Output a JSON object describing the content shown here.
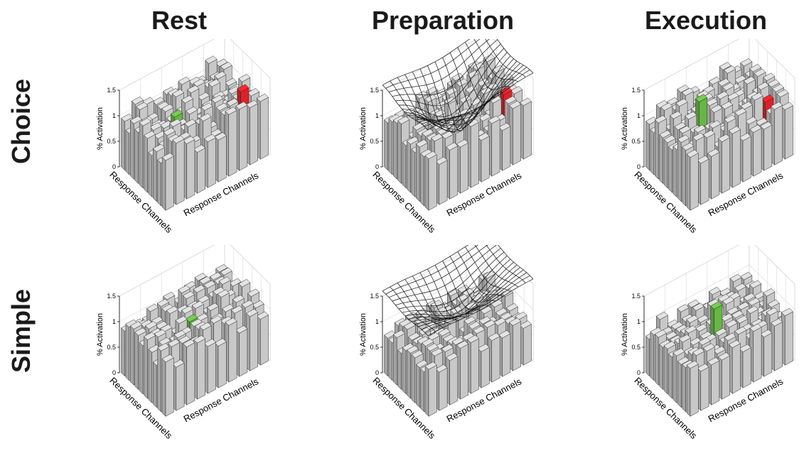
{
  "columns": [
    "Rest",
    "Preparation",
    "Execution"
  ],
  "rows": [
    "Choice",
    "Simple"
  ],
  "colors": {
    "bar": "#d2d2d2",
    "edge": "#2a2a2a",
    "target": "#e8242a",
    "chosen": "#6cc04a",
    "mesh": "#111111",
    "grid": "#d8d8d8"
  },
  "chart_data": [
    {
      "type": "bar3d",
      "row": "Choice",
      "column": "Rest",
      "zlabel": "% Activation",
      "xlabel": "Response Channels",
      "ylabel": "Response Channels",
      "zticks": [
        "0",
        "0.5",
        "1",
        "1.5"
      ],
      "zlim": [
        0,
        1.5
      ],
      "grid": true,
      "baseline": 1.0,
      "jitter": 0.22,
      "highlights": [
        {
          "color": "chosen",
          "i": 3,
          "j": 5,
          "value": 1.05
        },
        {
          "color": "target",
          "i": 8,
          "j": 2,
          "value": 1.25
        }
      ],
      "surface": false
    },
    {
      "type": "bar3d",
      "row": "Choice",
      "column": "Preparation",
      "zlabel": "% Activation",
      "xlabel": "Response Channels",
      "ylabel": "Response Channels",
      "zticks": [
        "0",
        "0.5",
        "1",
        "1.5"
      ],
      "zlim": [
        0,
        1.5
      ],
      "grid": true,
      "baseline": 1.0,
      "jitter": 0.22,
      "highlights": [
        {
          "color": "target",
          "i": 8,
          "j": 2,
          "value": 1.2
        }
      ],
      "surface": true,
      "surface_depth": 0.9
    },
    {
      "type": "bar3d",
      "row": "Choice",
      "column": "Execution",
      "zlabel": "% Activation",
      "xlabel": "Response Channels",
      "ylabel": "Response Channels",
      "zticks": [
        "0",
        "0.5",
        "1",
        "1.5"
      ],
      "zlim": [
        0,
        1.5
      ],
      "grid": true,
      "baseline": 1.0,
      "jitter": 0.22,
      "highlights": [
        {
          "color": "chosen",
          "i": 3,
          "j": 5,
          "value": 1.35
        },
        {
          "color": "target",
          "i": 8,
          "j": 2,
          "value": 1.05
        }
      ],
      "surface": false
    },
    {
      "type": "bar3d",
      "row": "Simple",
      "column": "Rest",
      "zlabel": "% Activation",
      "xlabel": "Response Channels",
      "ylabel": "Response Channels",
      "zticks": [
        "0",
        "0.5",
        "1",
        "1.5"
      ],
      "zlim": [
        0,
        1.5
      ],
      "grid": true,
      "baseline": 1.0,
      "jitter": 0.2,
      "highlights": [
        {
          "color": "chosen",
          "i": 4,
          "j": 4,
          "value": 1.05
        }
      ],
      "surface": false
    },
    {
      "type": "bar3d",
      "row": "Simple",
      "column": "Preparation",
      "zlabel": "% Activation",
      "xlabel": "Response Channels",
      "ylabel": "Response Channels",
      "zticks": [
        "0",
        "0.5",
        "1",
        "1.5"
      ],
      "zlim": [
        0,
        1.5
      ],
      "grid": true,
      "baseline": 0.85,
      "jitter": 0.15,
      "highlights": [
        {
          "color": "chosen",
          "i": 4,
          "j": 4,
          "value": 0.55
        }
      ],
      "surface": true,
      "surface_depth": 0.45
    },
    {
      "type": "bar3d",
      "row": "Simple",
      "column": "Execution",
      "zlabel": "% Activation",
      "xlabel": "Response Channels",
      "ylabel": "Response Channels",
      "zticks": [
        "0",
        "0.5",
        "1",
        "1.5"
      ],
      "zlim": [
        0,
        1.5
      ],
      "grid": true,
      "baseline": 0.85,
      "jitter": 0.15,
      "highlights": [
        {
          "color": "chosen",
          "i": 4,
          "j": 4,
          "value": 1.3
        }
      ],
      "surface": false
    }
  ]
}
